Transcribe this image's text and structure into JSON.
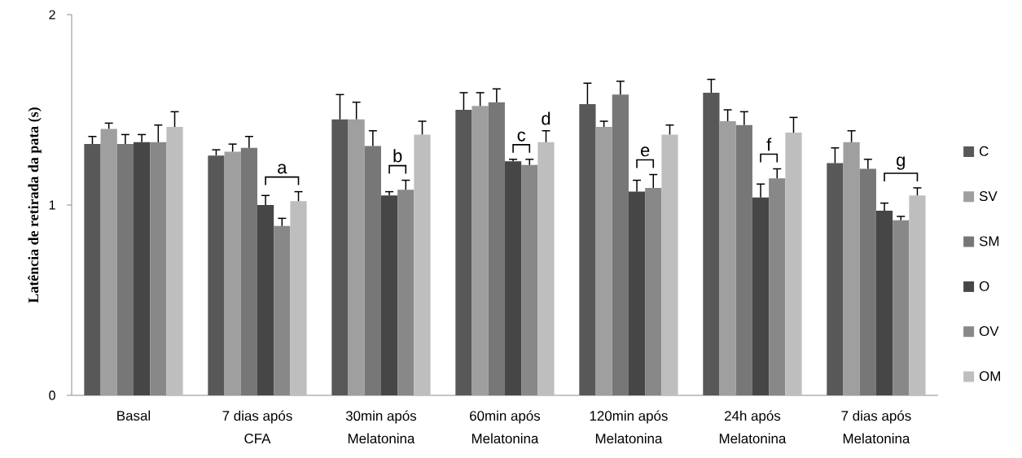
{
  "chart_data": {
    "type": "bar",
    "ylabel": "Latência de retirada da pata (s)",
    "categories": [
      "Basal",
      "7 dias após CFA",
      "30min após Melatonina",
      "60min após Melatonina",
      "120min após Melatonina",
      "24h após Melatonina",
      "7 dias após Melatonina"
    ],
    "series": [
      {
        "name": "C",
        "color": "#585858",
        "values": [
          1.32,
          1.26,
          1.45,
          1.5,
          1.53,
          1.59,
          1.22
        ],
        "errors": [
          [
            1.32,
            1.36
          ],
          [
            1.26,
            1.29
          ],
          [
            1.45,
            1.58
          ],
          [
            1.5,
            1.59
          ],
          [
            1.53,
            1.64
          ],
          [
            1.59,
            1.66
          ],
          [
            1.22,
            1.3
          ]
        ]
      },
      {
        "name": "SV",
        "color": "#9f9f9f",
        "values": [
          1.4,
          1.28,
          1.45,
          1.52,
          1.41,
          1.44,
          1.33
        ],
        "errors": [
          [
            1.4,
            1.43
          ],
          [
            1.28,
            1.32
          ],
          [
            1.45,
            1.54
          ],
          [
            1.52,
            1.59
          ],
          [
            1.41,
            1.44
          ],
          [
            1.44,
            1.5
          ],
          [
            1.33,
            1.39
          ]
        ]
      },
      {
        "name": "SM",
        "color": "#777777",
        "values": [
          1.32,
          1.3,
          1.31,
          1.54,
          1.58,
          1.42,
          1.19
        ],
        "errors": [
          [
            1.32,
            1.37
          ],
          [
            1.3,
            1.36
          ],
          [
            1.31,
            1.39
          ],
          [
            1.54,
            1.61
          ],
          [
            1.58,
            1.65
          ],
          [
            1.42,
            1.49
          ],
          [
            1.19,
            1.24
          ]
        ]
      },
      {
        "name": "O",
        "color": "#464646",
        "values": [
          1.33,
          1.0,
          1.05,
          1.23,
          1.07,
          1.04,
          0.97
        ],
        "errors": [
          [
            1.33,
            1.37
          ],
          [
            1.0,
            1.05
          ],
          [
            1.05,
            1.07
          ],
          [
            1.23,
            1.24
          ],
          [
            1.07,
            1.13
          ],
          [
            1.04,
            1.11
          ],
          [
            0.97,
            1.01
          ]
        ]
      },
      {
        "name": "OV",
        "color": "#888888",
        "values": [
          1.33,
          0.89,
          1.08,
          1.21,
          1.09,
          1.14,
          0.92
        ],
        "errors": [
          [
            1.33,
            1.42
          ],
          [
            0.89,
            0.93
          ],
          [
            1.08,
            1.13
          ],
          [
            1.21,
            1.24
          ],
          [
            1.09,
            1.16
          ],
          [
            1.14,
            1.19
          ],
          [
            0.92,
            0.94
          ]
        ]
      },
      {
        "name": "OM",
        "color": "#bebebe",
        "values": [
          1.41,
          1.02,
          1.37,
          1.33,
          1.37,
          1.38,
          1.05
        ],
        "errors": [
          [
            1.41,
            1.49
          ],
          [
            1.02,
            1.07
          ],
          [
            1.37,
            1.44
          ],
          [
            1.33,
            1.39
          ],
          [
            1.37,
            1.42
          ],
          [
            1.38,
            1.46
          ],
          [
            1.05,
            1.09
          ]
        ]
      }
    ],
    "ylim": [
      0,
      2
    ],
    "yticks": [
      0,
      1,
      2
    ],
    "legend": "right",
    "annotations": [
      "a",
      "b",
      "c",
      "d",
      "e",
      "f",
      "g"
    ]
  }
}
